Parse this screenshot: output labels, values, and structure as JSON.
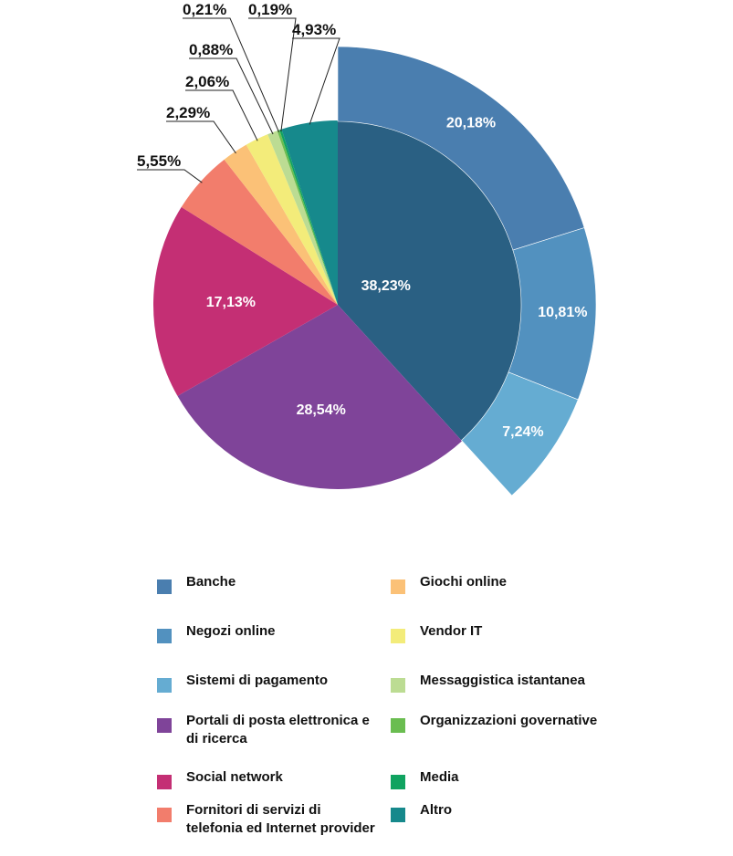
{
  "chart_data": {
    "type": "pie",
    "title": "",
    "inner_pie": {
      "slices": [
        {
          "key": "bancario",
          "label": "38,23%",
          "value": 38.23,
          "color": "#2a6083"
        },
        {
          "key": "portali",
          "label": "28,54%",
          "value": 28.54,
          "color": "#7f4499"
        },
        {
          "key": "social",
          "label": "17,13%",
          "value": 17.13,
          "color": "#c42f74"
        },
        {
          "key": "fornitori",
          "label": "5,55%",
          "value": 5.55,
          "color": "#f27d6c"
        },
        {
          "key": "giochi",
          "label": "2,29%",
          "value": 2.29,
          "color": "#fbc177"
        },
        {
          "key": "vendor",
          "label": "2,06%",
          "value": 2.06,
          "color": "#f3ec7a"
        },
        {
          "key": "messaggistica",
          "label": "0,88%",
          "value": 0.88,
          "color": "#bcdc93"
        },
        {
          "key": "organizzazioni",
          "label": "0,21%",
          "value": 0.21,
          "color": "#6abd50"
        },
        {
          "key": "media",
          "label": "0,19%",
          "value": 0.19,
          "color": "#10a360"
        },
        {
          "key": "altro",
          "label": "4,93%",
          "value": 4.93,
          "color": "#16898c"
        }
      ]
    },
    "outer_ring": {
      "parent": "bancario",
      "slices": [
        {
          "name": "Banche",
          "label": "20,18%",
          "value": 20.18,
          "color": "#4a7eaf"
        },
        {
          "name": "Negozi online",
          "label": "10,81%",
          "value": 10.81,
          "color": "#5291bf"
        },
        {
          "name": "Sistemi di pagamento",
          "label": "7,24%",
          "value": 7.24,
          "color": "#65acd2"
        }
      ]
    },
    "legend": [
      {
        "label": "Banche",
        "color": "#4a7eaf"
      },
      {
        "label": "Negozi online",
        "color": "#5291bf"
      },
      {
        "label": "Sistemi di pagamento",
        "color": "#65acd2"
      },
      {
        "label": "Portali di posta elettronica e di ricerca",
        "color": "#7f4499"
      },
      {
        "label": "Social network",
        "color": "#c42f74"
      },
      {
        "label": "Fornitori di servizi di telefonia ed Internet provider",
        "color": "#f27d6c"
      },
      {
        "label": "Giochi online",
        "color": "#fbc177"
      },
      {
        "label": "Vendor IT",
        "color": "#f3ec7a"
      },
      {
        "label": "Messaggistica istantanea",
        "color": "#bcdc93"
      },
      {
        "label": "Organizzazioni governative",
        "color": "#6abd50"
      },
      {
        "label": "Media",
        "color": "#10a360"
      },
      {
        "label": "Altro",
        "color": "#16898c"
      }
    ]
  }
}
